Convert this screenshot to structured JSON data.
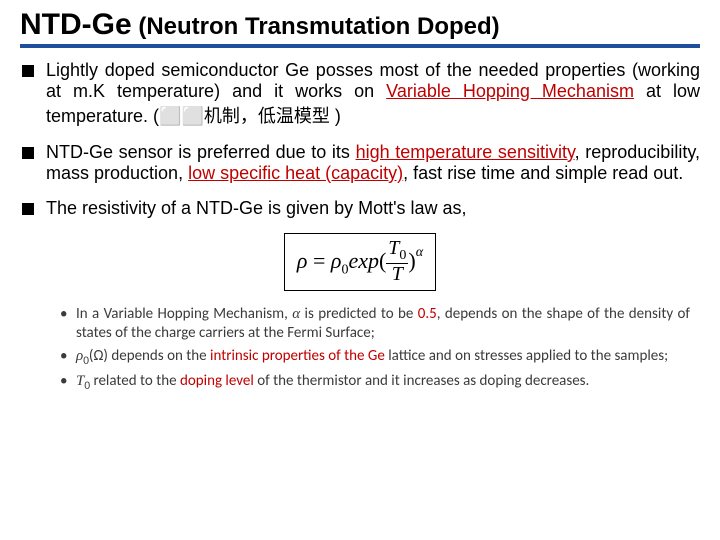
{
  "colors": {
    "title_text": "#000000",
    "rule": "#1f4e9c",
    "body_text": "#000000",
    "highlight_red": "#c00000",
    "sub_text": "#3b3b3b"
  },
  "fonts": {
    "title_main_size": 30,
    "title_sub_size": 24,
    "body_size": 18,
    "sub_size": 15,
    "formula_size": 22
  },
  "title": {
    "main": "NTD-Ge",
    "sub": " (Neutron Transmutation Doped)"
  },
  "bullets": [
    {
      "segments": [
        {
          "t": "Lightly doped semiconductor Ge posses most of the needed properties (working at m.K temperature) and it works on "
        },
        {
          "t": "Variable Hopping Mechanism",
          "style": "red-u"
        },
        {
          "t": " at low temperature. ("
        },
        {
          "t": "⬜⬜机制，低温模型",
          "style": "cjk"
        },
        {
          "t": " )"
        }
      ]
    },
    {
      "segments": [
        {
          "t": "NTD-Ge sensor is preferred due to its "
        },
        {
          "t": "high temperature sensitivity",
          "style": "red-u"
        },
        {
          "t": ", reproducibility, mass production, "
        },
        {
          "t": "low specific heat (capacity)",
          "style": "red-u"
        },
        {
          "t": ", fast rise time and simple read out."
        }
      ]
    },
    {
      "segments": [
        {
          "t": "The resistivity of a NTD-Ge is given by Mott's law as,"
        }
      ]
    }
  ],
  "formula": {
    "lhs_var": "ρ",
    "rhs_prefix": "ρ",
    "rhs_sub": "0",
    "func": "exp",
    "frac_num_var": "T",
    "frac_num_sub": "0",
    "frac_den_var": "T",
    "exp_var": "α",
    "open": "(",
    "close": ")",
    "eq": " = "
  },
  "subbullets": [
    {
      "segments": [
        {
          "t": "In a Variable Hopping Mechanism, "
        },
        {
          "t": "α",
          "style": "it"
        },
        {
          "t": " is predicted to be "
        },
        {
          "t": "0.5",
          "style": "red"
        },
        {
          "t": ", depends on the shape of the density of states of the charge carriers at the Fermi Surface;"
        }
      ]
    },
    {
      "segments": [
        {
          "t": "ρ",
          "style": "it"
        },
        {
          "t": "0",
          "style": "sub"
        },
        {
          "t": "(Ω) depends on the "
        },
        {
          "t": "intrinsic properties of the Ge",
          "style": "red"
        },
        {
          "t": " lattice and on stresses applied to the samples;"
        }
      ]
    },
    {
      "segments": [
        {
          "t": "T",
          "style": "it"
        },
        {
          "t": "0",
          "style": "sub"
        },
        {
          "t": " related to the "
        },
        {
          "t": "doping level",
          "style": "red"
        },
        {
          "t": " of the thermistor and it increases as doping decreases."
        }
      ]
    }
  ]
}
